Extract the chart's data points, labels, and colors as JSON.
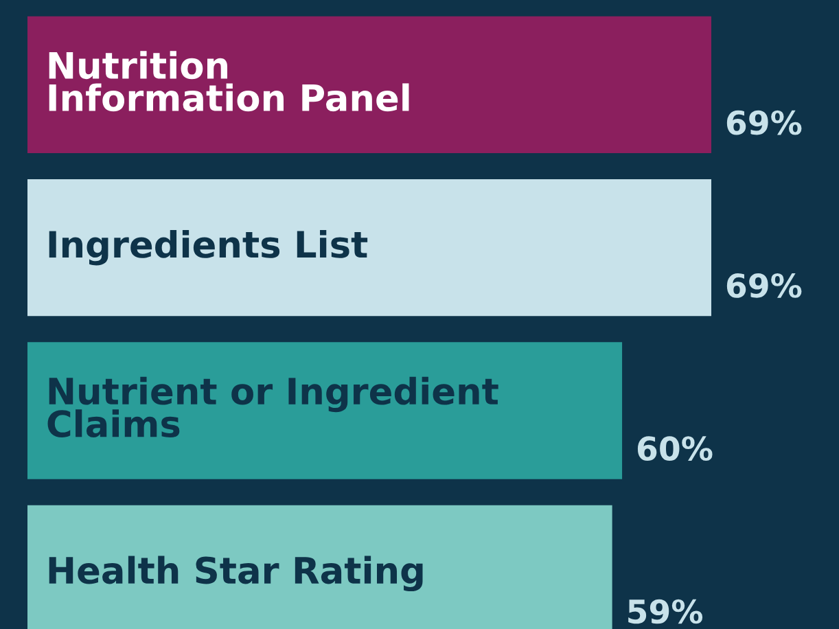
{
  "chart_data": {
    "type": "bar",
    "orientation": "horizontal",
    "categories": [
      "Nutrition\nInformation Panel",
      "Ingredients List",
      "Nutrient or Ingredient\nClaims",
      "Health Star Rating"
    ],
    "values": [
      69,
      69,
      60,
      59
    ],
    "colors": [
      "#8b1f5e",
      "#c8e2ea",
      "#2a9d99",
      "#7dc9c2"
    ],
    "value_labels": [
      "69%",
      "69%",
      "60%",
      "59%"
    ],
    "legend": false
  }
}
